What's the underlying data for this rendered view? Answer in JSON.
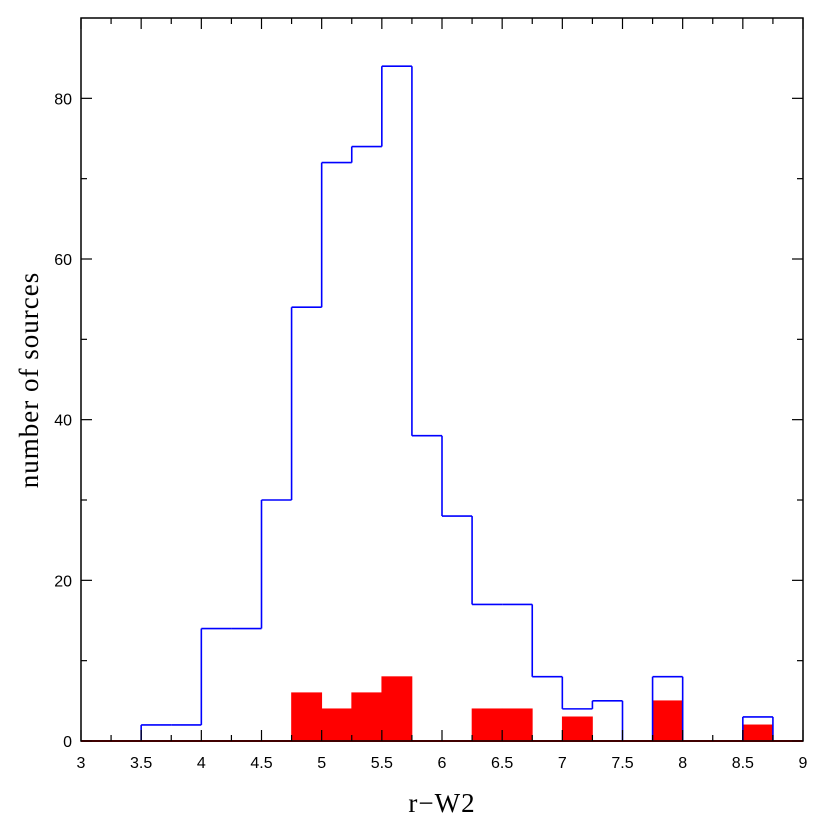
{
  "chart_data": {
    "type": "bar",
    "xlabel": "r−W2",
    "ylabel": "number of sources",
    "xlim": [
      3,
      9
    ],
    "ylim": [
      0,
      90
    ],
    "grid": false,
    "bin_width": 0.25,
    "x_ticks": [
      "3",
      "3.5",
      "4",
      "4.5",
      "5",
      "5.5",
      "6",
      "6.5",
      "7",
      "7.5",
      "8",
      "8.5",
      "9"
    ],
    "y_ticks": [
      "0",
      "20",
      "40",
      "60",
      "80"
    ],
    "series": [
      {
        "style": "step-outline",
        "color": "#0000ff",
        "bins": [
          {
            "x0": 3.5,
            "x1": 3.75,
            "count": 2
          },
          {
            "x0": 3.75,
            "x1": 4.0,
            "count": 2
          },
          {
            "x0": 4.0,
            "x1": 4.25,
            "count": 14
          },
          {
            "x0": 4.25,
            "x1": 4.5,
            "count": 14
          },
          {
            "x0": 4.5,
            "x1": 4.75,
            "count": 30
          },
          {
            "x0": 4.75,
            "x1": 5.0,
            "count": 54
          },
          {
            "x0": 5.0,
            "x1": 5.25,
            "count": 72
          },
          {
            "x0": 5.25,
            "x1": 5.5,
            "count": 74
          },
          {
            "x0": 5.5,
            "x1": 5.75,
            "count": 84
          },
          {
            "x0": 5.75,
            "x1": 6.0,
            "count": 38
          },
          {
            "x0": 6.0,
            "x1": 6.25,
            "count": 28
          },
          {
            "x0": 6.25,
            "x1": 6.5,
            "count": 17
          },
          {
            "x0": 6.5,
            "x1": 6.75,
            "count": 17
          },
          {
            "x0": 6.75,
            "x1": 7.0,
            "count": 8
          },
          {
            "x0": 7.0,
            "x1": 7.25,
            "count": 4
          },
          {
            "x0": 7.25,
            "x1": 7.5,
            "count": 5
          },
          {
            "x0": 7.5,
            "x1": 7.75,
            "count": 0
          },
          {
            "x0": 7.75,
            "x1": 8.0,
            "count": 8
          },
          {
            "x0": 8.0,
            "x1": 8.25,
            "count": 0
          },
          {
            "x0": 8.25,
            "x1": 8.5,
            "count": 0
          },
          {
            "x0": 8.5,
            "x1": 8.75,
            "count": 3
          }
        ]
      },
      {
        "style": "filled",
        "color": "#ff0000",
        "bins": [
          {
            "x0": 4.75,
            "x1": 5.0,
            "count": 6
          },
          {
            "x0": 5.0,
            "x1": 5.25,
            "count": 4
          },
          {
            "x0": 5.25,
            "x1": 5.5,
            "count": 6
          },
          {
            "x0": 5.5,
            "x1": 5.75,
            "count": 8
          },
          {
            "x0": 6.25,
            "x1": 6.5,
            "count": 4
          },
          {
            "x0": 6.5,
            "x1": 6.75,
            "count": 4
          },
          {
            "x0": 7.0,
            "x1": 7.25,
            "count": 3
          },
          {
            "x0": 7.75,
            "x1": 8.0,
            "count": 5
          },
          {
            "x0": 8.5,
            "x1": 8.75,
            "count": 2
          }
        ]
      }
    ]
  }
}
